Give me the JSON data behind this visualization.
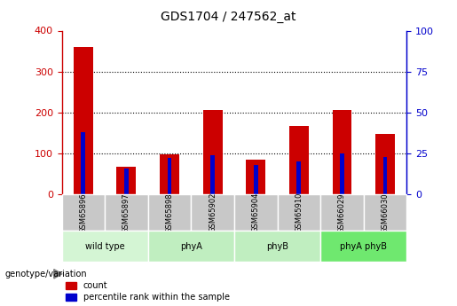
{
  "title": "GDS1704 / 247562_at",
  "samples": [
    "GSM65896",
    "GSM65897",
    "GSM65898",
    "GSM65902",
    "GSM65904",
    "GSM65910",
    "GSM66029",
    "GSM66030"
  ],
  "count_values": [
    360,
    68,
    97,
    207,
    85,
    168,
    207,
    148
  ],
  "percentile_values": [
    38,
    16,
    22,
    24,
    18,
    20,
    25,
    23
  ],
  "bar_width": 0.45,
  "percentile_bar_width": 0.1,
  "ylim_left": [
    0,
    400
  ],
  "ylim_right": [
    0,
    100
  ],
  "yticks_left": [
    0,
    100,
    200,
    300,
    400
  ],
  "yticks_right": [
    0,
    25,
    50,
    75,
    100
  ],
  "count_color": "#cc0000",
  "percentile_color": "#0000cc",
  "left_axis_color": "#cc0000",
  "right_axis_color": "#0000cc",
  "grid_lines": [
    100,
    200,
    300
  ],
  "sample_box_color": "#c8c8c8",
  "group_info": [
    {
      "label": "wild type",
      "start": 0,
      "end": 1,
      "color": "#d4f5d4"
    },
    {
      "label": "phyA",
      "start": 2,
      "end": 3,
      "color": "#c0eec0"
    },
    {
      "label": "phyB",
      "start": 4,
      "end": 5,
      "color": "#c0eec0"
    },
    {
      "label": "phyA phyB",
      "start": 6,
      "end": 7,
      "color": "#6fe86f"
    }
  ]
}
